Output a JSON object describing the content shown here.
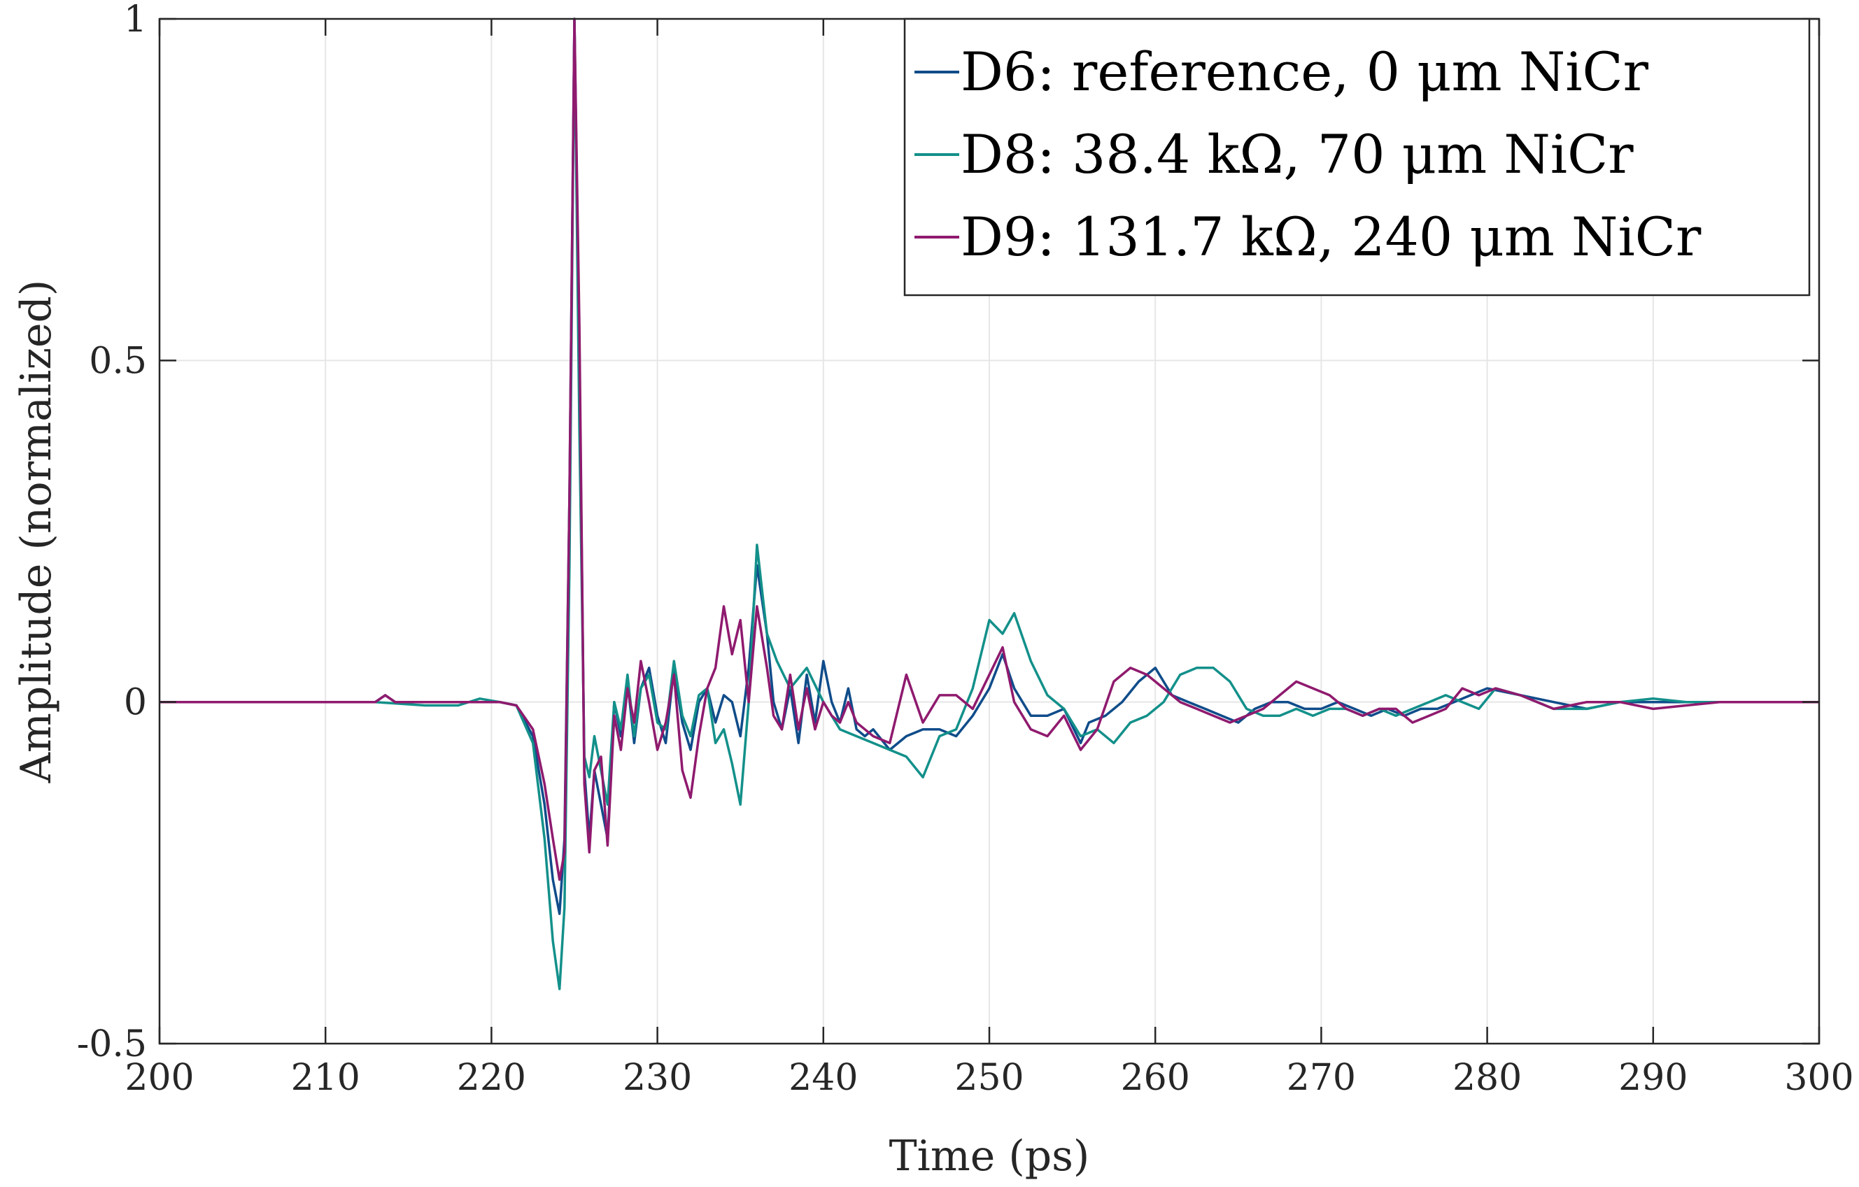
{
  "chart_data": {
    "type": "line",
    "title": "",
    "xlabel": "Time (ps)",
    "ylabel": "Amplitude (normalized)",
    "xlim": [
      200,
      300
    ],
    "ylim": [
      -0.5,
      1
    ],
    "xticks": [
      200,
      210,
      220,
      230,
      240,
      250,
      260,
      270,
      280,
      290,
      300
    ],
    "yticks": [
      -0.5,
      0,
      0.5,
      1
    ],
    "xtick_labels": [
      "200",
      "210",
      "220",
      "230",
      "240",
      "250",
      "260",
      "270",
      "280",
      "290",
      "300"
    ],
    "ytick_labels": [
      "-0.5",
      "0",
      "0.5",
      "1"
    ],
    "grid": true,
    "legend_position": "top-right",
    "series": [
      {
        "name": "D6: reference, 0 μm NiCr",
        "color": "#0f4c8a",
        "x": [
          200,
          205,
          210,
          213,
          213.6,
          214.2,
          216,
          219,
          220.5,
          221.5,
          222.5,
          223.2,
          223.7,
          224.1,
          224.4,
          224.7,
          225.0,
          225.3,
          225.6,
          225.9,
          226.2,
          226.6,
          227.0,
          227.4,
          227.8,
          228.2,
          228.6,
          229.0,
          229.5,
          230.0,
          230.5,
          231.0,
          231.5,
          232.0,
          232.5,
          233.0,
          233.5,
          234.0,
          234.5,
          235.0,
          235.5,
          236.0,
          236.6,
          237.0,
          237.5,
          238.0,
          238.5,
          239.0,
          239.5,
          240.0,
          240.5,
          241.0,
          241.5,
          242.0,
          242.5,
          243.0,
          244.0,
          245.0,
          246.0,
          247.0,
          248.0,
          249.0,
          250.0,
          250.8,
          251.5,
          252.5,
          253.5,
          254.5,
          255.5,
          256.0,
          257.0,
          258.0,
          259.0,
          260.0,
          261.0,
          262.0,
          263.0,
          264.0,
          265.0,
          266.0,
          267.0,
          268.0,
          269.0,
          270.0,
          271.0,
          272.0,
          273.0,
          274.0,
          275.0,
          276.0,
          277.0,
          278.0,
          279.0,
          280.0,
          282.0,
          284.0,
          286.0,
          288.0,
          290.0,
          292.0,
          294.0,
          296.0,
          298.0,
          300.0
        ],
        "y": [
          0,
          0,
          0,
          0,
          0.01,
          0,
          0,
          0,
          0,
          -0.005,
          -0.05,
          -0.15,
          -0.26,
          -0.31,
          -0.2,
          0.3,
          1.0,
          0.5,
          -0.1,
          -0.2,
          -0.1,
          -0.15,
          -0.2,
          0,
          -0.05,
          0.03,
          -0.06,
          0.02,
          0.05,
          -0.02,
          -0.06,
          0.05,
          -0.03,
          -0.07,
          0,
          0.02,
          -0.03,
          0.01,
          0,
          -0.05,
          0.05,
          0.2,
          0.1,
          0,
          -0.04,
          0.02,
          -0.06,
          0.04,
          -0.03,
          0.06,
          0,
          -0.03,
          0.02,
          -0.04,
          -0.05,
          -0.04,
          -0.07,
          -0.05,
          -0.04,
          -0.04,
          -0.05,
          -0.02,
          0.02,
          0.07,
          0.02,
          -0.02,
          -0.02,
          -0.01,
          -0.06,
          -0.03,
          -0.02,
          0,
          0.03,
          0.05,
          0.01,
          0,
          -0.01,
          -0.02,
          -0.03,
          -0.01,
          0,
          0,
          -0.01,
          -0.01,
          0,
          -0.01,
          -0.02,
          -0.01,
          -0.02,
          -0.01,
          -0.01,
          0,
          0.01,
          0.02,
          0.01,
          0,
          -0.01,
          0,
          0,
          0,
          0,
          0,
          0,
          0
        ]
      },
      {
        "name": "D8: 38.4 kΩ, 70 μm NiCr",
        "color": "#13908a",
        "x": [
          200,
          205,
          210,
          213,
          216,
          218,
          219.3,
          220.5,
          221.5,
          222.5,
          223.2,
          223.7,
          224.1,
          224.4,
          224.7,
          225.0,
          225.3,
          225.6,
          225.9,
          226.2,
          226.6,
          227.0,
          227.4,
          227.8,
          228.2,
          228.6,
          229.0,
          229.5,
          230.0,
          230.5,
          231.0,
          231.5,
          232.0,
          232.5,
          233.0,
          233.5,
          234.0,
          234.5,
          235.0,
          235.5,
          236.0,
          236.6,
          237.2,
          238.0,
          239.0,
          240.0,
          241.0,
          242.0,
          243.0,
          244.0,
          245.0,
          246.0,
          247.0,
          248.0,
          249.0,
          250.0,
          250.8,
          251.5,
          252.5,
          253.5,
          254.5,
          255.5,
          256.5,
          257.5,
          258.5,
          259.5,
          260.5,
          261.5,
          262.5,
          263.5,
          264.5,
          265.5,
          266.5,
          267.5,
          268.5,
          269.5,
          270.5,
          271.5,
          272.5,
          273.5,
          274.5,
          275.5,
          276.5,
          277.5,
          278.5,
          279.5,
          280.5,
          282.0,
          284.0,
          286.0,
          288.0,
          290.0,
          292.0,
          294.0,
          296.0,
          298.0,
          300.0
        ],
        "y": [
          0,
          0,
          0,
          0,
          -0.005,
          -0.005,
          0.005,
          0,
          -0.005,
          -0.06,
          -0.2,
          -0.35,
          -0.42,
          -0.3,
          0.2,
          1.0,
          0.4,
          -0.08,
          -0.11,
          -0.05,
          -0.1,
          -0.15,
          0,
          -0.04,
          0.04,
          -0.05,
          0.02,
          0.04,
          -0.03,
          -0.04,
          0.06,
          -0.02,
          -0.05,
          0.01,
          0.02,
          -0.06,
          -0.04,
          -0.09,
          -0.15,
          0,
          0.23,
          0.1,
          0.06,
          0.02,
          0.05,
          0,
          -0.04,
          -0.05,
          -0.06,
          -0.07,
          -0.08,
          -0.11,
          -0.05,
          -0.04,
          0.02,
          0.12,
          0.1,
          0.13,
          0.06,
          0.01,
          -0.01,
          -0.05,
          -0.04,
          -0.06,
          -0.03,
          -0.02,
          0,
          0.04,
          0.05,
          0.05,
          0.03,
          -0.01,
          -0.02,
          -0.02,
          -0.01,
          -0.02,
          -0.01,
          -0.01,
          -0.02,
          -0.01,
          -0.02,
          -0.01,
          0,
          0.01,
          0,
          -0.01,
          0.02,
          0.01,
          -0.01,
          -0.01,
          0,
          0.005,
          0,
          0,
          0,
          0,
          0
        ]
      },
      {
        "name": "D9: 131.7 kΩ, 240 μm NiCr",
        "color": "#8f1a6e",
        "x": [
          200,
          205,
          210,
          213,
          213.6,
          214.2,
          216,
          219,
          220.5,
          221.5,
          222.5,
          223.2,
          223.7,
          224.1,
          224.4,
          224.7,
          225.0,
          225.3,
          225.6,
          225.9,
          226.2,
          226.6,
          227.0,
          227.4,
          227.8,
          228.2,
          228.6,
          229.0,
          229.5,
          230.0,
          230.5,
          231.0,
          231.5,
          232.0,
          232.5,
          233.0,
          233.5,
          234.0,
          234.5,
          235.0,
          235.5,
          236.0,
          236.6,
          237.0,
          237.5,
          238.0,
          238.5,
          239.0,
          239.5,
          240.0,
          240.5,
          241.0,
          241.5,
          242.0,
          242.5,
          243.0,
          244.0,
          245.0,
          246.0,
          247.0,
          248.0,
          249.0,
          250.0,
          250.8,
          251.5,
          252.5,
          253.5,
          254.5,
          255.5,
          256.5,
          257.5,
          258.5,
          259.5,
          260.5,
          261.5,
          262.5,
          263.5,
          264.5,
          265.5,
          266.5,
          267.5,
          268.5,
          269.5,
          270.5,
          271.5,
          272.5,
          273.5,
          274.5,
          275.5,
          276.5,
          277.5,
          278.5,
          279.5,
          280.5,
          282.0,
          284.0,
          286.0,
          288.0,
          290.0,
          292.0,
          294.0,
          296.0,
          298.0,
          300.0
        ],
        "y": [
          0,
          0,
          0,
          0,
          0.01,
          0,
          0,
          0,
          0,
          -0.005,
          -0.04,
          -0.12,
          -0.2,
          -0.26,
          -0.22,
          0.3,
          1.0,
          0.55,
          -0.12,
          -0.22,
          -0.1,
          -0.08,
          -0.21,
          -0.02,
          -0.07,
          0.02,
          -0.03,
          0.06,
          0,
          -0.07,
          -0.03,
          0.04,
          -0.1,
          -0.14,
          -0.05,
          0.02,
          0.05,
          0.14,
          0.07,
          0.12,
          0,
          0.14,
          0.05,
          -0.02,
          -0.04,
          0.04,
          -0.04,
          0.02,
          -0.04,
          0,
          -0.02,
          -0.03,
          0,
          -0.03,
          -0.04,
          -0.05,
          -0.06,
          0.04,
          -0.03,
          0.01,
          0.01,
          -0.01,
          0.04,
          0.08,
          0,
          -0.04,
          -0.05,
          -0.02,
          -0.07,
          -0.04,
          0.03,
          0.05,
          0.04,
          0.02,
          0,
          -0.01,
          -0.02,
          -0.03,
          -0.02,
          -0.01,
          0.01,
          0.03,
          0.02,
          0.01,
          -0.01,
          -0.02,
          -0.01,
          -0.01,
          -0.03,
          -0.02,
          -0.01,
          0.02,
          0.01,
          0.02,
          0.01,
          -0.01,
          0,
          0,
          -0.01,
          -0.005,
          0,
          0,
          0,
          0
        ]
      }
    ]
  }
}
